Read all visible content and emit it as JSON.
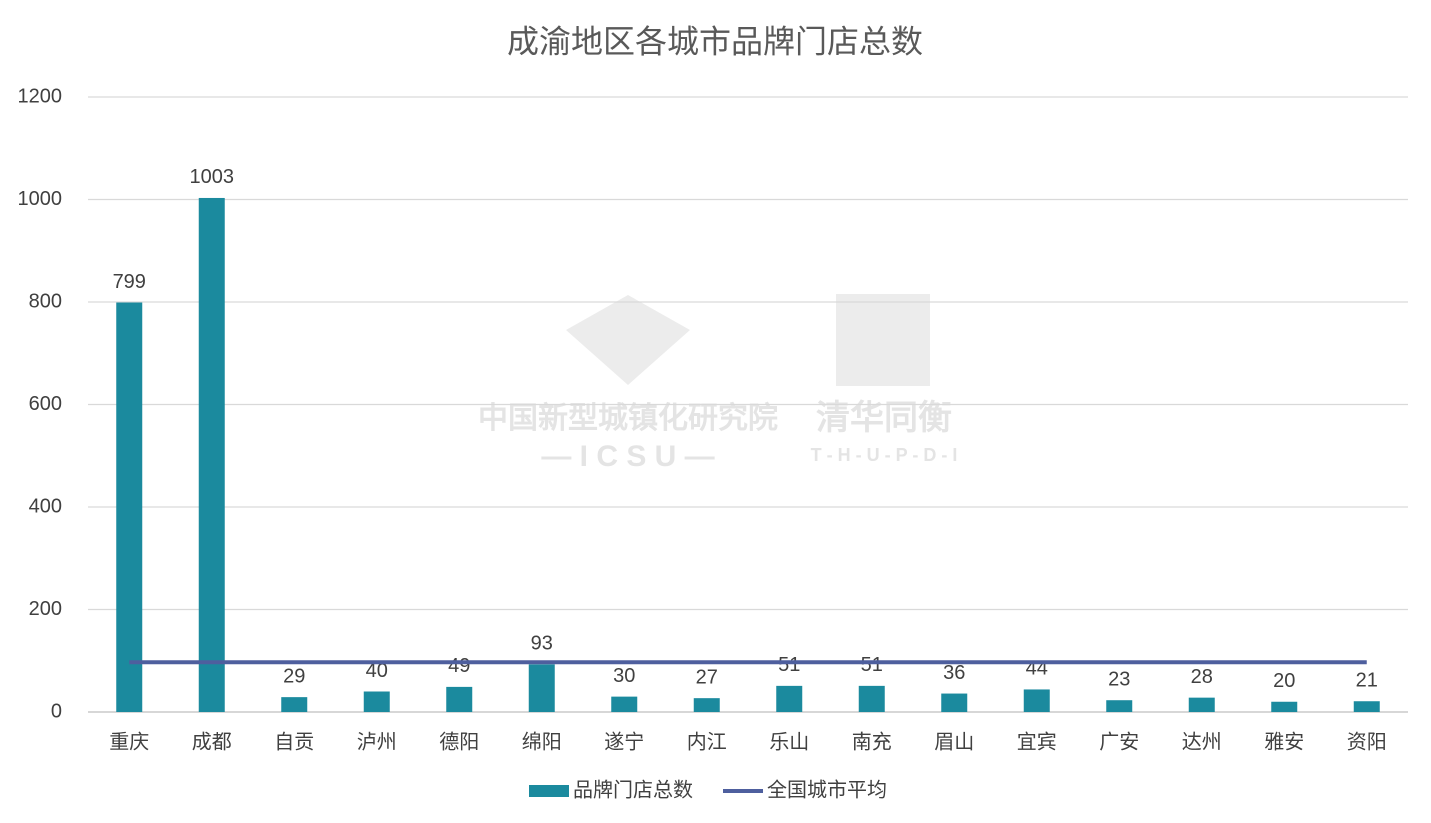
{
  "chart_data": {
    "type": "bar",
    "title": "成渝地区各城市品牌门店总数",
    "categories": [
      "重庆",
      "成都",
      "自贡",
      "泸州",
      "德阳",
      "绵阳",
      "遂宁",
      "内江",
      "乐山",
      "南充",
      "眉山",
      "宜宾",
      "广安",
      "达州",
      "雅安",
      "资阳"
    ],
    "series": [
      {
        "name": "品牌门店总数",
        "type": "bar",
        "color": "#1b8a9e",
        "values": [
          799,
          1003,
          29,
          40,
          49,
          93,
          30,
          27,
          51,
          51,
          36,
          44,
          23,
          28,
          20,
          21
        ]
      },
      {
        "name": "全国城市平均",
        "type": "line",
        "color": "#4e5f9e",
        "values": [
          97,
          97,
          97,
          97,
          97,
          97,
          97,
          97,
          97,
          97,
          97,
          97,
          97,
          97,
          97,
          97
        ]
      }
    ],
    "ylim": [
      0,
      1200
    ],
    "yticks": [
      0,
      200,
      400,
      600,
      800,
      1000,
      1200
    ],
    "grid": true,
    "legend": "bottom"
  },
  "watermark": [
    "中国新型城镇化研究院",
    "— I C S U —",
    "清华同衡",
    "T - H - U - P - D - I"
  ]
}
